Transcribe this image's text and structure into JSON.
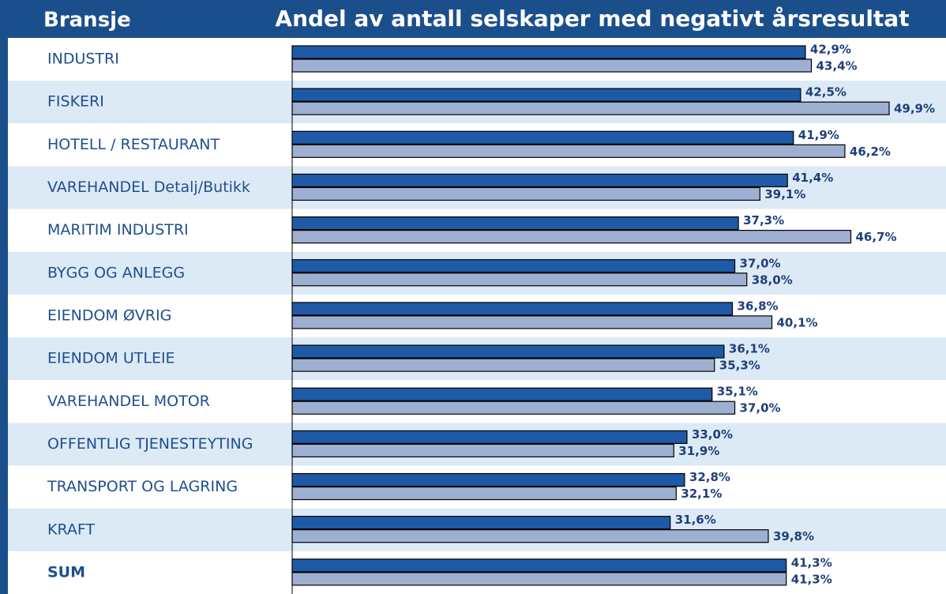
{
  "chart_data": {
    "type": "bar",
    "orientation": "horizontal",
    "header": "Bransje",
    "title": "Andel av antall selskaper med negativt årsresultat",
    "categories": [
      "INDUSTRI",
      "FISKERI",
      "HOTELL / RESTAURANT",
      "VAREHANDEL Detalj/Butikk",
      "MARITIM INDUSTRI",
      "BYGG OG ANLEGG",
      "EIENDOM ØVRIG",
      "EIENDOM UTLEIE",
      "VAREHANDEL MOTOR",
      "OFFENTLIG TJENESTEYTING",
      "TRANSPORT OG LAGRING",
      "KRAFT",
      "SUM"
    ],
    "xlim": [
      0,
      50
    ],
    "series": [
      {
        "color": "#1f5aa6",
        "values": [
          42.9,
          42.5,
          41.9,
          41.4,
          37.3,
          37.0,
          36.8,
          36.1,
          35.1,
          33.0,
          32.8,
          31.6,
          41.3
        ],
        "value_labels": [
          "42,9%",
          "42,5%",
          "41,9%",
          "41,4%",
          "37,3%",
          "37,0%",
          "36,8%",
          "36,1%",
          "35,1%",
          "33,0%",
          "32,8%",
          "31,6%",
          "41,3%"
        ]
      },
      {
        "color": "#9eb0d2",
        "values": [
          43.4,
          49.9,
          46.2,
          39.1,
          46.7,
          38.0,
          40.1,
          35.3,
          37.0,
          31.9,
          32.1,
          39.8,
          41.3
        ],
        "value_labels": [
          "43,4%",
          "49,9%",
          "46,2%",
          "39,1%",
          "46,7%",
          "38,0%",
          "40,1%",
          "35,3%",
          "37,0%",
          "31,9%",
          "32,1%",
          "39,8%",
          "41,3%"
        ]
      }
    ]
  }
}
